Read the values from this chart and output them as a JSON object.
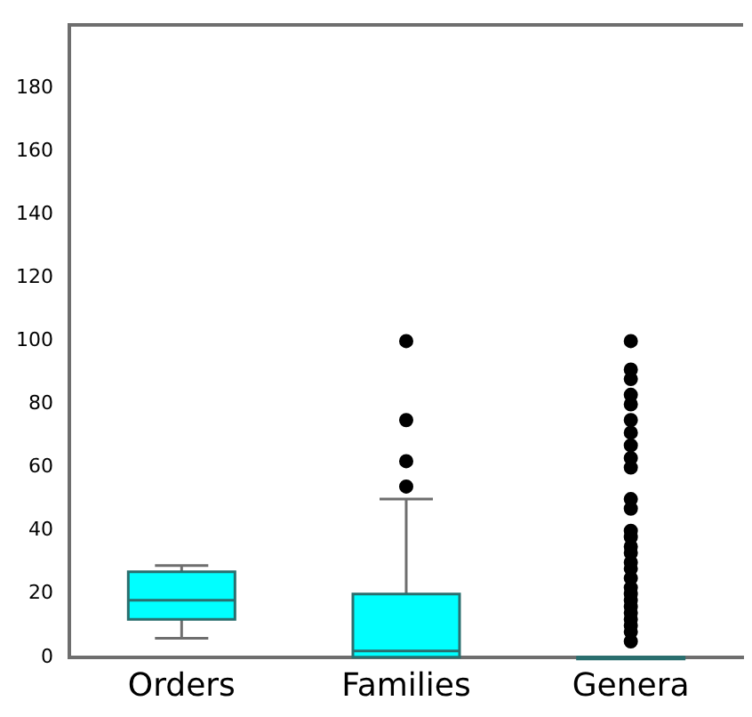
{
  "chart_data": {
    "type": "box",
    "categories": [
      "Orders",
      "Families",
      "Genera"
    ],
    "color": "#00ffff",
    "boxes": [
      {
        "low": 6,
        "q1": 12,
        "median": 18,
        "q3": 27,
        "high": 29
      },
      {
        "low": 0,
        "q1": 0,
        "median": 2,
        "q3": 20,
        "high": 50,
        "outliers": [
          54,
          62,
          75,
          100
        ]
      },
      {
        "low": 0,
        "q1": 0,
        "median": 0,
        "q3": 0,
        "high": 0,
        "outliers": [
          5,
          8,
          10,
          12,
          14,
          16,
          18,
          20,
          22,
          25,
          28,
          30,
          33,
          35,
          38,
          40,
          47,
          50,
          60,
          63,
          67,
          71,
          75,
          80,
          83,
          88,
          91,
          100
        ]
      }
    ],
    "ylim": [
      0,
      200
    ],
    "yticks": [
      0,
      20,
      40,
      60,
      80,
      100,
      120,
      140,
      160,
      180
    ],
    "grid": false,
    "legend": false
  }
}
